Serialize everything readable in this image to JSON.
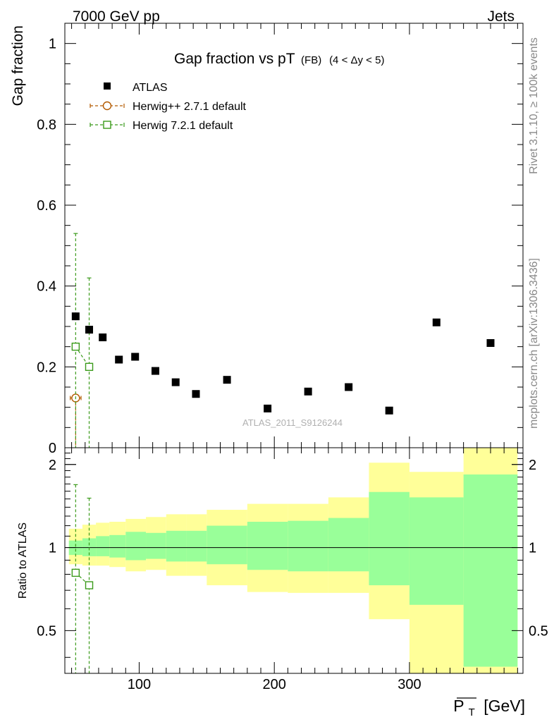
{
  "header": {
    "left": "7000 GeV pp",
    "right": "Jets"
  },
  "side_texts": {
    "rivet": "Rivet 3.1.10, ≥ 100k events",
    "mcplots": "mcplots.cern.ch [arXiv:1306.3436]"
  },
  "watermark": "ATLAS_2011_S9126244",
  "chart_data": [
    {
      "type": "scatter",
      "title": "Gap fraction vs pT",
      "title_suffix": "(FB)",
      "title_range": "(4 < Δy < 5)",
      "ylabel": "Gap fraction",
      "xlim": [
        45,
        384
      ],
      "ylim": [
        0,
        1.05
      ],
      "y_ticks": [
        0,
        0.2,
        0.4,
        0.6,
        0.8,
        1
      ],
      "y_tick_labels": [
        "0",
        "0.2",
        "0.4",
        "0.6",
        "0.8",
        "1"
      ],
      "legend_position": "top-left",
      "series": [
        {
          "name": "ATLAS",
          "marker": "filled-square",
          "color": "#000000",
          "x": [
            53,
            63,
            73,
            85,
            97,
            112,
            127,
            142,
            165,
            195,
            225,
            255,
            285,
            320,
            360
          ],
          "y": [
            0.325,
            0.292,
            0.273,
            0.218,
            0.225,
            0.19,
            0.162,
            0.133,
            0.168,
            0.097,
            0.139,
            0.15,
            0.092,
            0.31,
            0.259
          ]
        },
        {
          "name": "Herwig++ 2.7.1 default",
          "marker": "open-circle",
          "color": "#b35a00",
          "x": [
            53
          ],
          "y": [
            0.123
          ],
          "y_err_low": [
            0.123
          ],
          "y_err_high": [
            0.0
          ],
          "x_err": [
            4
          ]
        },
        {
          "name": "Herwig 7.2.1 default",
          "marker": "open-square",
          "color": "#3a9a1a",
          "x": [
            53,
            63
          ],
          "y": [
            0.25,
            0.2
          ],
          "y_err_low": [
            0.25,
            0.2
          ],
          "y_err_high": [
            0.28,
            0.22
          ]
        }
      ]
    },
    {
      "type": "area",
      "ylabel": "Ratio to ATLAS",
      "xlabel": "P_T [GeV]",
      "xlabel_main": "P",
      "xlabel_sub": "T",
      "xlabel_unit": "[GeV]",
      "xlim": [
        45,
        384
      ],
      "ylim": [
        0.35,
        2.3
      ],
      "x_ticks": [
        100,
        200,
        300
      ],
      "x_tick_labels": [
        "100",
        "200",
        "300"
      ],
      "y_ticks": [
        0.5,
        1,
        2
      ],
      "y_tick_labels": [
        "0.5",
        "1",
        "2"
      ],
      "bands": {
        "bin_edges": [
          48,
          58,
          68,
          78,
          90,
          105,
          120,
          135,
          150,
          180,
          210,
          240,
          270,
          300,
          340,
          380
        ],
        "yellow_low": [
          0.87,
          0.86,
          0.86,
          0.85,
          0.82,
          0.83,
          0.79,
          0.79,
          0.73,
          0.69,
          0.685,
          0.685,
          0.55,
          0.35,
          0.35
        ],
        "yellow_high": [
          1.17,
          1.21,
          1.23,
          1.24,
          1.27,
          1.29,
          1.32,
          1.32,
          1.37,
          1.44,
          1.44,
          1.52,
          2.03,
          1.88,
          2.35
        ],
        "green_low": [
          0.94,
          0.93,
          0.93,
          0.92,
          0.9,
          0.91,
          0.89,
          0.89,
          0.87,
          0.83,
          0.82,
          0.82,
          0.73,
          0.62,
          0.37
        ],
        "green_high": [
          1.06,
          1.08,
          1.1,
          1.11,
          1.14,
          1.13,
          1.15,
          1.15,
          1.2,
          1.24,
          1.25,
          1.28,
          1.59,
          1.52,
          1.84
        ]
      },
      "reference_line": 1,
      "series": [
        {
          "name": "Herwig 7.2.1 default",
          "marker": "open-square",
          "color": "#3a9a1a",
          "x": [
            53,
            63
          ],
          "y": [
            0.81,
            0.73
          ],
          "y_err_low": [
            0.48,
            0.4
          ],
          "y_err_high": [
            0.88,
            0.78
          ]
        }
      ]
    }
  ]
}
